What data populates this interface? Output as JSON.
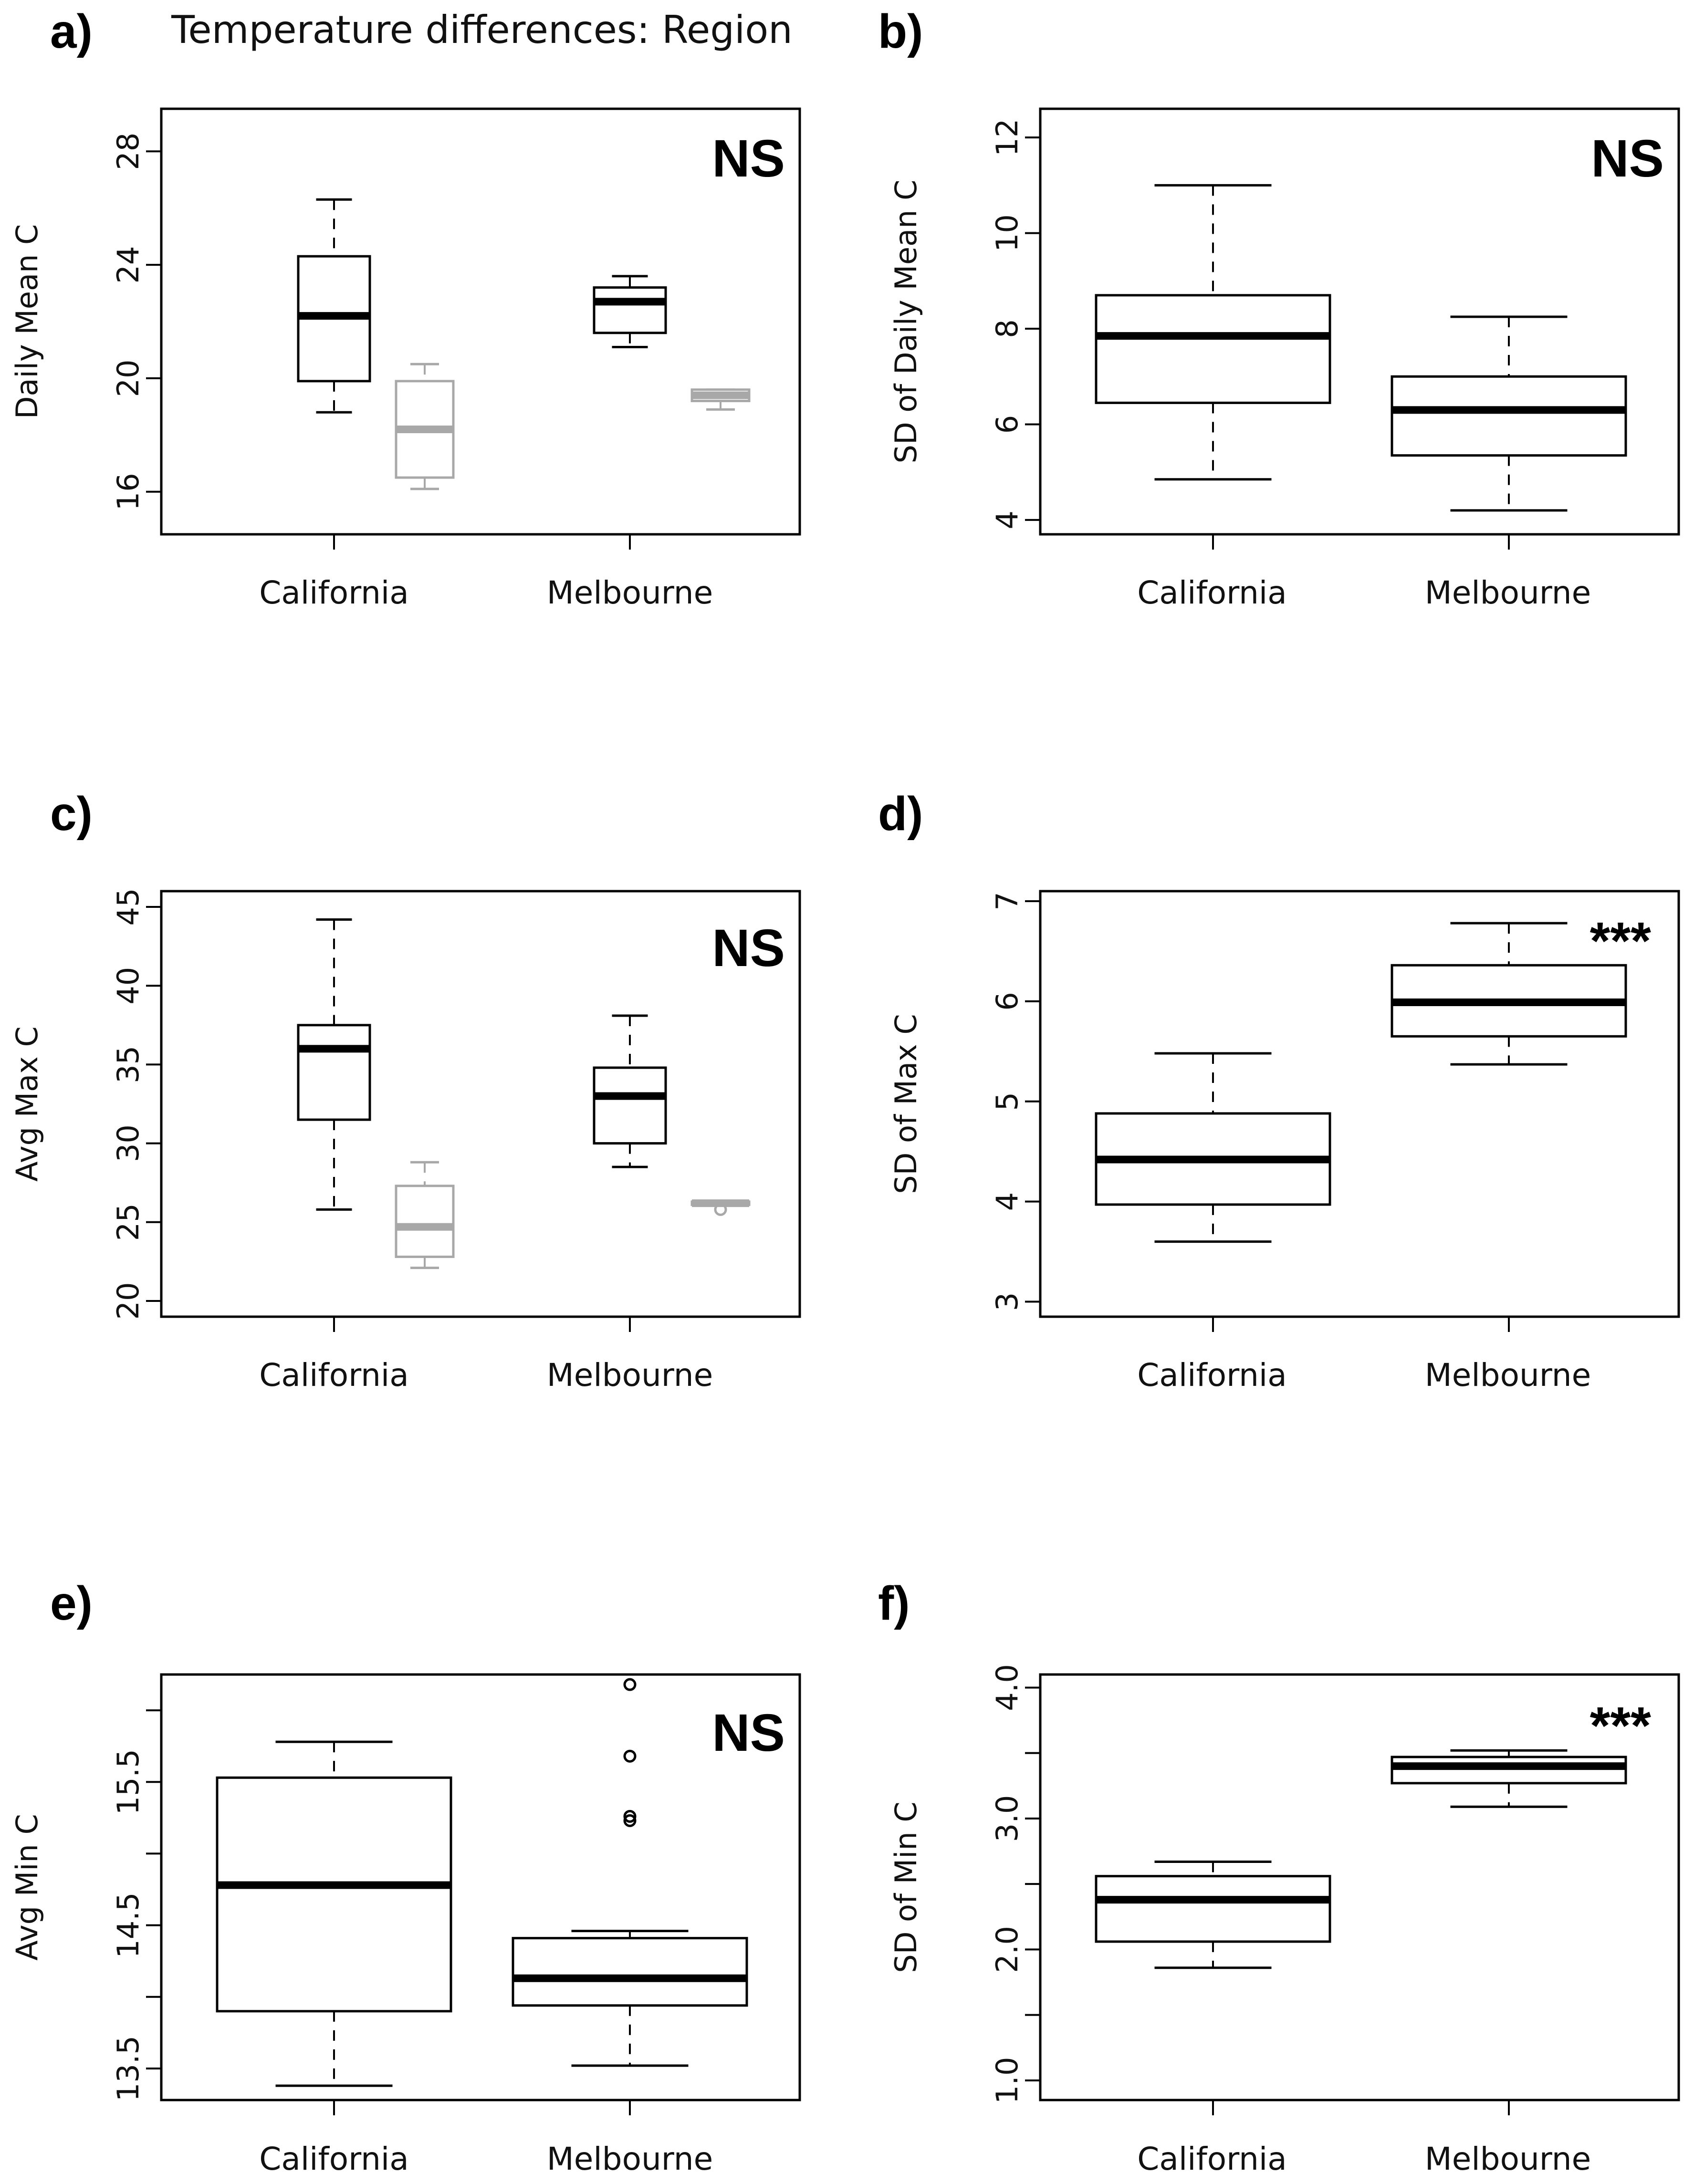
{
  "figure_title": "Temperature differences: Region",
  "colors": {
    "primary": "#000000",
    "secondary": "#a8a8a8"
  },
  "chart_data": [
    {
      "type": "box",
      "panel": "a)",
      "ylabel": "Daily Mean C",
      "ylim": [
        14.5,
        29.5
      ],
      "yticks": [
        16,
        20,
        24,
        28
      ],
      "tick_labels": [
        "16",
        "20",
        "24",
        "28"
      ],
      "categories": [
        "California",
        "Melbourne"
      ],
      "significance": "NS",
      "boxes": [
        {
          "category": "California",
          "series": "primary",
          "whisker_low": 18.8,
          "q1": 19.9,
          "median": 22.2,
          "q3": 24.3,
          "whisker_high": 26.3,
          "outliers": []
        },
        {
          "category": "California",
          "series": "secondary",
          "whisker_low": 16.1,
          "q1": 16.5,
          "median": 18.2,
          "q3": 19.9,
          "whisker_high": 20.5,
          "outliers": []
        },
        {
          "category": "Melbourne",
          "series": "primary",
          "whisker_low": 21.1,
          "q1": 21.6,
          "median": 22.7,
          "q3": 23.2,
          "whisker_high": 23.6,
          "outliers": []
        },
        {
          "category": "Melbourne",
          "series": "secondary",
          "whisker_low": 18.9,
          "q1": 19.2,
          "median": 19.4,
          "q3": 19.6,
          "whisker_high": 19.6,
          "outliers": []
        }
      ]
    },
    {
      "type": "box",
      "panel": "b)",
      "ylabel": "SD of Daily Mean C",
      "ylim": [
        3.7,
        12.6
      ],
      "yticks": [
        4,
        6,
        8,
        10,
        12
      ],
      "tick_labels": [
        "4",
        "6",
        "8",
        "10",
        "12"
      ],
      "categories": [
        "California",
        "Melbourne"
      ],
      "significance": "NS",
      "boxes": [
        {
          "category": "California",
          "series": "primary",
          "whisker_low": 4.85,
          "q1": 6.45,
          "median": 7.85,
          "q3": 8.7,
          "whisker_high": 11.0,
          "outliers": []
        },
        {
          "category": "Melbourne",
          "series": "primary",
          "whisker_low": 4.2,
          "q1": 5.35,
          "median": 6.3,
          "q3": 7.0,
          "whisker_high": 8.25,
          "outliers": []
        }
      ]
    },
    {
      "type": "box",
      "panel": "c)",
      "ylabel": "Avg Max C",
      "ylim": [
        19,
        46
      ],
      "yticks": [
        20,
        25,
        30,
        35,
        40,
        45
      ],
      "tick_labels": [
        "20",
        "25",
        "30",
        "35",
        "40",
        "45"
      ],
      "categories": [
        "California",
        "Melbourne"
      ],
      "significance": "NS",
      "boxes": [
        {
          "category": "California",
          "series": "primary",
          "whisker_low": 25.8,
          "q1": 31.5,
          "median": 36.0,
          "q3": 37.5,
          "whisker_high": 44.2,
          "outliers": []
        },
        {
          "category": "California",
          "series": "secondary",
          "whisker_low": 22.1,
          "q1": 22.8,
          "median": 24.7,
          "q3": 27.3,
          "whisker_high": 28.8,
          "outliers": []
        },
        {
          "category": "Melbourne",
          "series": "primary",
          "whisker_low": 28.5,
          "q1": 30.0,
          "median": 33.0,
          "q3": 34.8,
          "whisker_high": 38.1,
          "outliers": []
        },
        {
          "category": "Melbourne",
          "series": "secondary",
          "whisker_low": 26.1,
          "q1": 26.1,
          "median": 26.2,
          "q3": 26.3,
          "whisker_high": 26.3,
          "outliers": [
            25.8
          ]
        }
      ]
    },
    {
      "type": "box",
      "panel": "d)",
      "ylabel": "SD of Max C",
      "ylim": [
        2.85,
        7.1
      ],
      "yticks": [
        3,
        4,
        5,
        6,
        7
      ],
      "tick_labels": [
        "3",
        "4",
        "5",
        "6",
        "7"
      ],
      "categories": [
        "California",
        "Melbourne"
      ],
      "significance": "***",
      "boxes": [
        {
          "category": "California",
          "series": "primary",
          "whisker_low": 3.6,
          "q1": 3.97,
          "median": 4.42,
          "q3": 4.88,
          "whisker_high": 5.48,
          "outliers": []
        },
        {
          "category": "Melbourne",
          "series": "primary",
          "whisker_low": 5.37,
          "q1": 5.65,
          "median": 5.99,
          "q3": 6.36,
          "whisker_high": 6.78,
          "outliers": []
        }
      ]
    },
    {
      "type": "box",
      "panel": "e)",
      "ylabel": "Avg Min C",
      "ylim": [
        13.28,
        16.25
      ],
      "yticks": [
        13.5,
        14,
        14.5,
        15,
        15.5,
        16
      ],
      "tick_labels": [
        "13.5",
        "",
        "14.5",
        "",
        "15.5",
        ""
      ],
      "categories": [
        "California",
        "Melbourne"
      ],
      "significance": "NS",
      "boxes": [
        {
          "category": "California",
          "series": "primary",
          "whisker_low": 13.38,
          "q1": 13.9,
          "median": 14.78,
          "q3": 15.53,
          "whisker_high": 15.78,
          "outliers": []
        },
        {
          "category": "Melbourne",
          "series": "primary",
          "whisker_low": 13.52,
          "q1": 13.94,
          "median": 14.13,
          "q3": 14.41,
          "whisker_high": 14.46,
          "outliers": [
            16.18,
            15.68,
            15.26,
            15.23
          ]
        }
      ]
    },
    {
      "type": "box",
      "panel": "f)",
      "ylabel": "SD of Min C",
      "ylim": [
        0.85,
        4.1
      ],
      "yticks": [
        1.0,
        1.5,
        2.0,
        2.5,
        3.0,
        3.5,
        4.0
      ],
      "tick_labels": [
        "1.0",
        "",
        "2.0",
        "",
        "3.0",
        "",
        "4.0"
      ],
      "categories": [
        "California",
        "Melbourne"
      ],
      "significance": "***",
      "boxes": [
        {
          "category": "California",
          "series": "primary",
          "whisker_low": 1.86,
          "q1": 2.06,
          "median": 2.38,
          "q3": 2.56,
          "whisker_high": 2.67,
          "outliers": []
        },
        {
          "category": "Melbourne",
          "series": "primary",
          "whisker_low": 3.09,
          "q1": 3.27,
          "median": 3.4,
          "q3": 3.47,
          "whisker_high": 3.52,
          "outliers": []
        }
      ]
    }
  ]
}
